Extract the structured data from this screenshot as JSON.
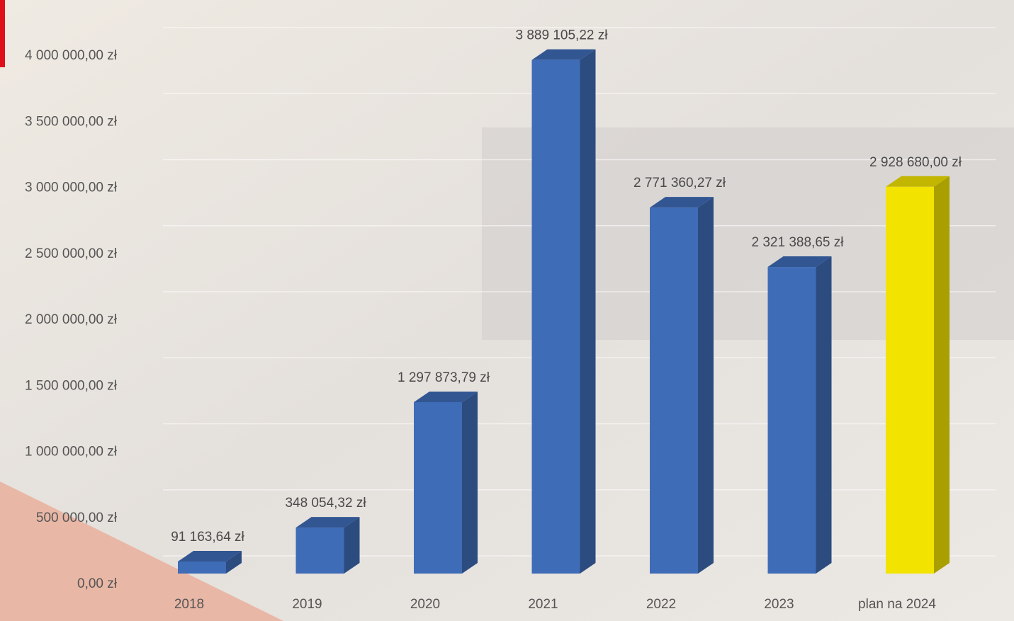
{
  "chart_data": {
    "type": "bar3d",
    "categories": [
      "2018",
      "2019",
      "2020",
      "2021",
      "2022",
      "2023",
      "plan na 2024"
    ],
    "values": [
      91163.64,
      348054.32,
      1297873.79,
      3889105.22,
      2771360.27,
      2321388.65,
      2928680.0
    ],
    "value_labels": [
      "91 163,64 zł",
      "348 054,32 zł",
      "1 297 873,79 zł",
      "3 889 105,22 zł",
      "2 771 360,27 zł",
      "2 321 388,65 zł",
      "2 928 680,00 zł"
    ],
    "colors": [
      "#3f6cb7",
      "#3f6cb7",
      "#3f6cb7",
      "#3f6cb7",
      "#3f6cb7",
      "#3f6cb7",
      "#f3e300"
    ],
    "ylim": [
      0,
      4000000
    ],
    "yticks": [
      {
        "value": 0,
        "label": "0,00 zł"
      },
      {
        "value": 500000,
        "label": "500 000,00 zł"
      },
      {
        "value": 1000000,
        "label": "1 000 000,00 zł"
      },
      {
        "value": 1500000,
        "label": "1 500 000,00 zł"
      },
      {
        "value": 2000000,
        "label": "2 000 000,00 zł"
      },
      {
        "value": 2500000,
        "label": "2 500 000,00 zł"
      },
      {
        "value": 3000000,
        "label": "3 000 000,00 zł"
      },
      {
        "value": 3500000,
        "label": "3 500 000,00 zł"
      },
      {
        "value": 4000000,
        "label": "4 000 000,00 zł"
      }
    ],
    "grid": true
  }
}
